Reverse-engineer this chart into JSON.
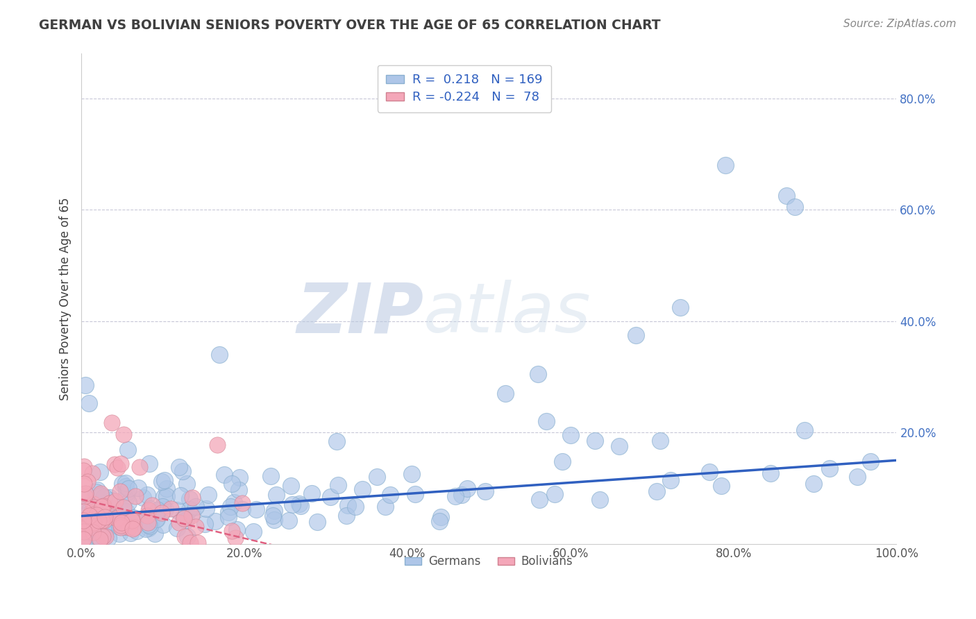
{
  "title": "GERMAN VS BOLIVIAN SENIORS POVERTY OVER THE AGE OF 65 CORRELATION CHART",
  "source": "Source: ZipAtlas.com",
  "ylabel": "Seniors Poverty Over the Age of 65",
  "xlim": [
    0,
    1.0
  ],
  "ylim": [
    0,
    0.88
  ],
  "xtick_labels": [
    "0.0%",
    "20.0%",
    "40.0%",
    "60.0%",
    "80.0%",
    "100.0%"
  ],
  "xtick_vals": [
    0.0,
    0.2,
    0.4,
    0.6,
    0.8,
    1.0
  ],
  "ytick_labels": [
    "20.0%",
    "40.0%",
    "60.0%",
    "80.0%"
  ],
  "ytick_vals": [
    0.2,
    0.4,
    0.6,
    0.8
  ],
  "watermark_zip": "ZIP",
  "watermark_atlas": "atlas",
  "legend_german_R": "0.218",
  "legend_german_N": "169",
  "legend_bolivian_R": "-0.224",
  "legend_bolivian_N": "78",
  "german_color": "#aec6e8",
  "bolivian_color": "#f4a7b9",
  "german_line_color": "#3060c0",
  "bolivian_line_color": "#e06080",
  "background_color": "#ffffff",
  "grid_color": "#cccccc",
  "title_color": "#404040",
  "tick_label_color": "#4472c4",
  "seed": 12345
}
